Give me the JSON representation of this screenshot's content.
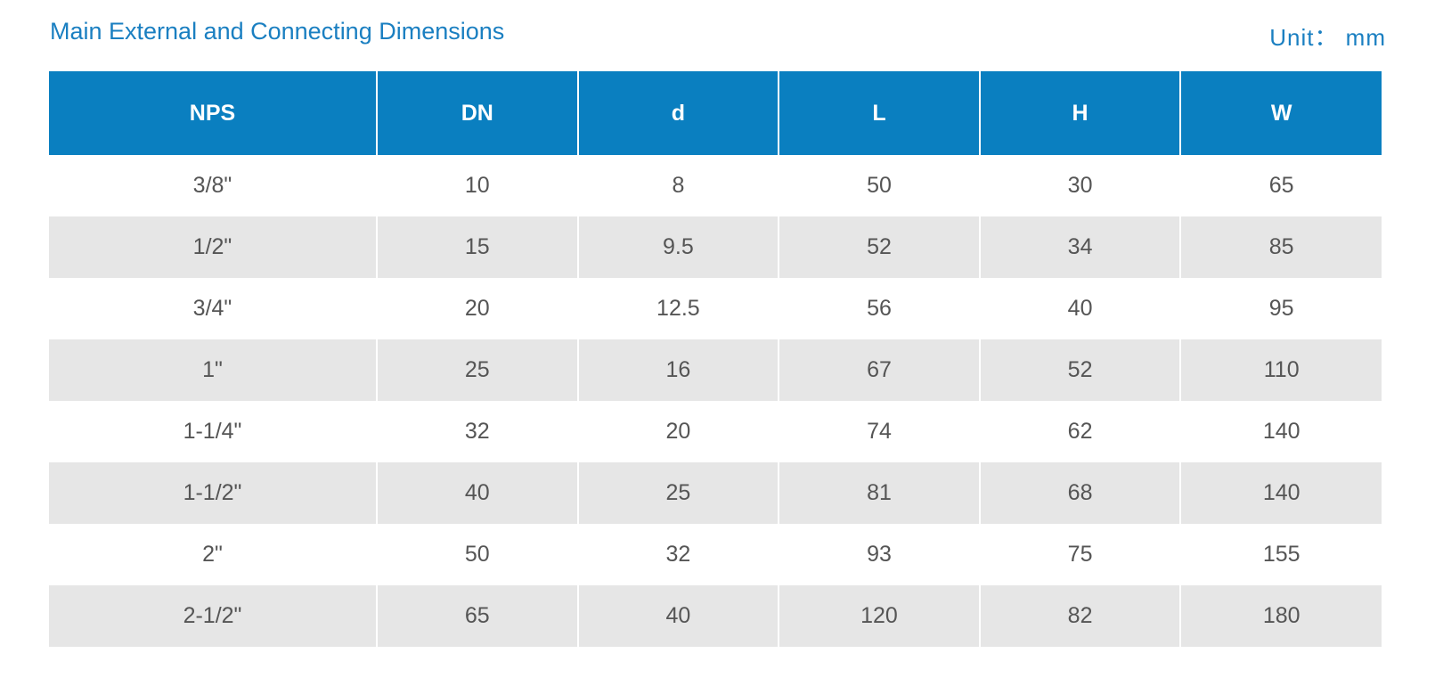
{
  "header": {
    "title": "Main External and Connecting Dimensions",
    "unit": "Unit： mm"
  },
  "colors": {
    "accent": "#1a7fc1",
    "header_bg": "#0a7fc0",
    "stripe": "#e6e6e6",
    "cell_text": "#555555"
  },
  "table": {
    "columns": [
      "NPS",
      "DN",
      "d",
      "L",
      "H",
      "W"
    ],
    "rows": [
      [
        "3/8\"",
        "10",
        "8",
        "50",
        "30",
        "65"
      ],
      [
        "1/2\"",
        "15",
        "9.5",
        "52",
        "34",
        "85"
      ],
      [
        "3/4\"",
        "20",
        "12.5",
        "56",
        "40",
        "95"
      ],
      [
        "1\"",
        "25",
        "16",
        "67",
        "52",
        "110"
      ],
      [
        "1-1/4\"",
        "32",
        "20",
        "74",
        "62",
        "140"
      ],
      [
        "1-1/2\"",
        "40",
        "25",
        "81",
        "68",
        "140"
      ],
      [
        "2\"",
        "50",
        "32",
        "93",
        "75",
        "155"
      ],
      [
        "2-1/2\"",
        "65",
        "40",
        "120",
        "82",
        "180"
      ]
    ]
  }
}
